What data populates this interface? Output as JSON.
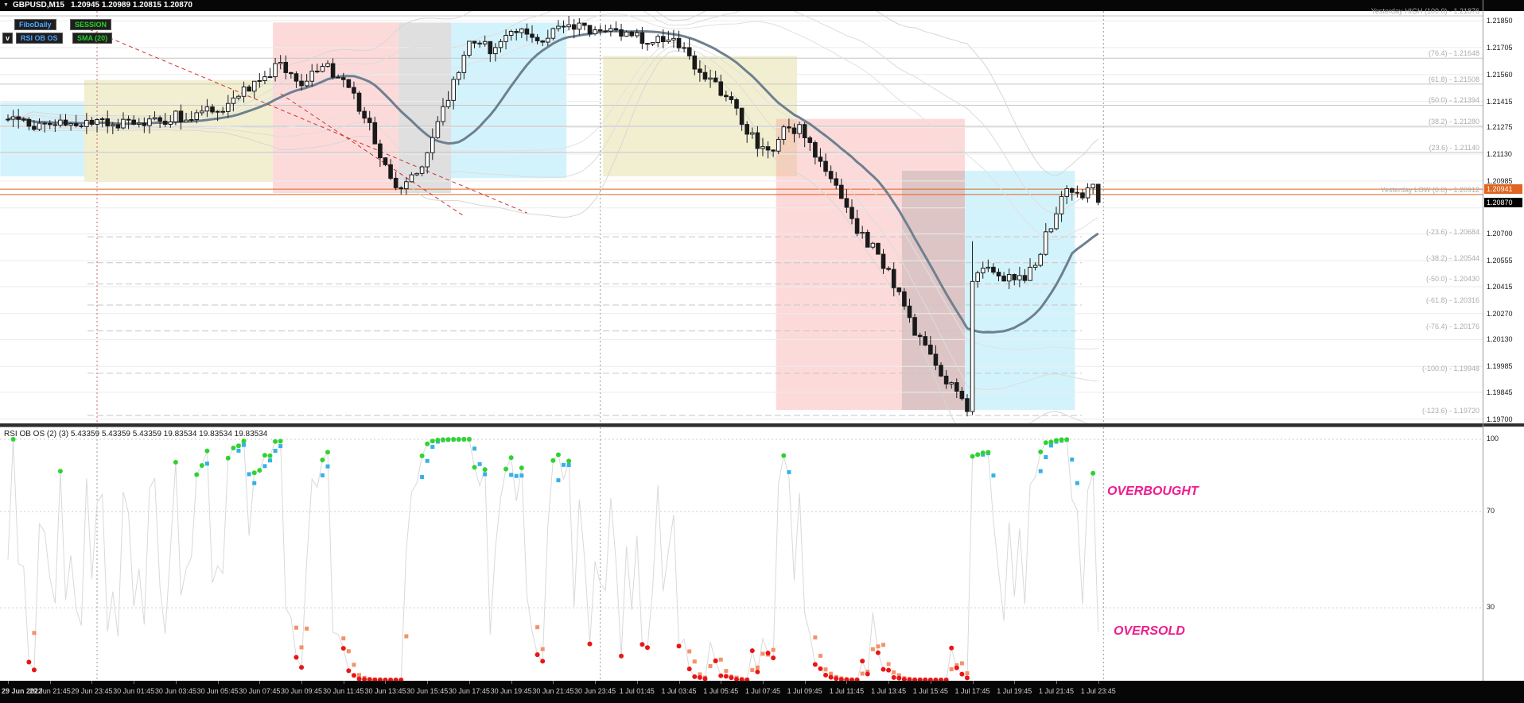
{
  "window": {
    "symbol": "GBPUSD,M15",
    "ohlc": "1.20945 1.20989 1.20815 1.20870",
    "dropdown_icon": "▼"
  },
  "buttons": {
    "fibo_daily": "FiboDaily",
    "session": "SESSION",
    "collapse": "v",
    "rsi_ob_os": "RSI OB OS",
    "sma20": "SMA (20)"
  },
  "indicator_label": "RSI OB OS (2) (3) 5.43359 5.43359 5.43359 19.83534 19.83534 19.83534",
  "overbought_label": "OVERBOUGHT",
  "oversold_label": "OVERSOLD",
  "price_axis": {
    "labels": [
      "1.21850",
      "1.21705",
      "1.21560",
      "1.21415",
      "1.21275",
      "1.21130",
      "1.20985",
      "1.20700",
      "1.20555",
      "1.20415",
      "1.20270",
      "1.20130",
      "1.19985",
      "1.19845",
      "1.19700"
    ],
    "grid": [
      1.2185,
      1.21705,
      1.2156,
      1.21415,
      1.21275,
      1.2113,
      1.20985,
      1.2084,
      1.207,
      1.20555,
      1.20415,
      1.2027,
      1.2013,
      1.19985,
      1.19845,
      1.197
    ],
    "orange_tag": "1.20941",
    "current_tag": "1.20870"
  },
  "rsi_axis": [
    "100",
    "70",
    "30"
  ],
  "time_axis": [
    "29 Jun 2022",
    "29 Jun 21:45",
    "29 Jun 23:45",
    "30 Jun 01:45",
    "30 Jun 03:45",
    "30 Jun 05:45",
    "30 Jun 07:45",
    "30 Jun 09:45",
    "30 Jun 11:45",
    "30 Jun 13:45",
    "30 Jun 15:45",
    "30 Jun 17:45",
    "30 Jun 19:45",
    "30 Jun 21:45",
    "30 Jun 23:45",
    "1 Jul 01:45",
    "1 Jul 03:45",
    "1 Jul 05:45",
    "1 Jul 07:45",
    "1 Jul 09:45",
    "1 Jul 11:45",
    "1 Jul 13:45",
    "1 Jul 15:45",
    "1 Jul 17:45",
    "1 Jul 19:45",
    "1 Jul 21:45",
    "1 Jul 23:45"
  ],
  "fibo_levels": [
    {
      "label": "Yesterday HIGH (100.0) - 1.21876",
      "price": 1.21876,
      "dash": false,
      "orange": false
    },
    {
      "label": "(76.4) - 1.21648",
      "price": 1.21648,
      "dash": false,
      "orange": false
    },
    {
      "label": "(61.8) - 1.21508",
      "price": 1.21508,
      "dash": false,
      "orange": false
    },
    {
      "label": "(50.0) - 1.21394",
      "price": 1.21394,
      "dash": false,
      "orange": false
    },
    {
      "label": "(38.2) - 1.21280",
      "price": 1.2128,
      "dash": false,
      "orange": false
    },
    {
      "label": "(23.6) - 1.21140",
      "price": 1.2114,
      "dash": false,
      "orange": false
    },
    {
      "label": "Yesterday LOW (0.0) - 1.20912",
      "price": 1.20912,
      "dash": false,
      "orange": true
    },
    {
      "label": "(-23.6) - 1.20684",
      "price": 1.20684,
      "dash": true,
      "orange": false
    },
    {
      "label": "(-38.2) - 1.20544",
      "price": 1.20544,
      "dash": true,
      "orange": false
    },
    {
      "label": "(-50.0) - 1.20430",
      "price": 1.2043,
      "dash": true,
      "orange": false
    },
    {
      "label": "(-61.8) - 1.20316",
      "price": 1.20316,
      "dash": true,
      "orange": false
    },
    {
      "label": "(-76.4) - 1.20176",
      "price": 1.20176,
      "dash": true,
      "orange": false
    },
    {
      "label": "(-100.0) - 1.19948",
      "price": 1.19948,
      "dash": true,
      "orange": false
    },
    {
      "label": "(-123.6) - 1.19720",
      "price": 1.1972,
      "dash": true,
      "orange": false
    }
  ],
  "colors": {
    "chart_bg": "#ffffff",
    "frame_bg": "#060606",
    "orange_line": "#e0651f",
    "sma_line": "#6e8090",
    "candle": "#1a1a1a",
    "grid": "#ececec",
    "fibo_label": "#adadad",
    "overbought_dot": "#2fd32f",
    "overbought_square": "#35b1e8",
    "oversold_dot": "#ea1515",
    "oversold_square": "#f2926c",
    "ob_os_text": "#ef1c8f",
    "button_blue": "#4da6ff",
    "button_green": "#27d127",
    "trend_line": "#cf3030"
  },
  "chart_data": {
    "type": "candlestick",
    "symbol": "GBPUSD",
    "timeframe": "M15",
    "open": 1.20945,
    "high": 1.20989,
    "low": 1.20815,
    "close": 1.2087,
    "bars": 209,
    "last_close": 1.2087,
    "orange_line_price": 1.20941,
    "yesterday_high": 1.21876,
    "yesterday_low": 1.20912,
    "price_range_top": 1.21902,
    "price_range_bottom": 1.19677,
    "close_anchors": [
      [
        0,
        1.2131
      ],
      [
        8,
        1.2128
      ],
      [
        16,
        1.2132
      ],
      [
        24,
        1.2129
      ],
      [
        32,
        1.2133
      ],
      [
        40,
        1.2137
      ],
      [
        46,
        1.2148
      ],
      [
        52,
        1.2161
      ],
      [
        55,
        1.2152
      ],
      [
        61,
        1.2159
      ],
      [
        65,
        1.2149
      ],
      [
        69,
        1.2127
      ],
      [
        74,
        1.2092
      ],
      [
        78,
        1.2101
      ],
      [
        82,
        1.213
      ],
      [
        85,
        1.2152
      ],
      [
        88,
        1.2173
      ],
      [
        93,
        1.2169
      ],
      [
        97,
        1.218
      ],
      [
        102,
        1.2176
      ],
      [
        107,
        1.2184
      ],
      [
        111,
        1.2178
      ],
      [
        116,
        1.2181
      ],
      [
        121,
        1.2174
      ],
      [
        126,
        1.2177
      ],
      [
        130,
        1.2165
      ],
      [
        134,
        1.2152
      ],
      [
        138,
        1.2141
      ],
      [
        142,
        1.2122
      ],
      [
        145,
        1.2113
      ],
      [
        148,
        1.2126
      ],
      [
        151,
        1.2127
      ],
      [
        154,
        1.2111
      ],
      [
        158,
        1.2093
      ],
      [
        162,
        1.2073
      ],
      [
        166,
        1.2059
      ],
      [
        170,
        1.2038
      ],
      [
        174,
        1.2012
      ],
      [
        177,
        1.1998
      ],
      [
        180,
        1.1989
      ],
      [
        183,
        1.1974
      ],
      [
        184,
        1.2042
      ],
      [
        186,
        1.2052
      ],
      [
        190,
        1.2047
      ],
      [
        194,
        1.2046
      ],
      [
        197,
        1.2061
      ],
      [
        200,
        1.2083
      ],
      [
        202,
        1.2094
      ],
      [
        205,
        1.2091
      ],
      [
        207,
        1.2096
      ],
      [
        208,
        1.2087
      ]
    ],
    "sessions": [
      {
        "name": "asia-1",
        "color": "rgba(130,222,245,0.35)",
        "b0": -1,
        "b1": 15,
        "p0": 1.2141,
        "p1": 1.2101
      },
      {
        "name": "london-1",
        "color": "rgba(218,210,120,0.35)",
        "b0": 15,
        "b1": 51,
        "p0": 1.2153,
        "p1": 1.2098
      },
      {
        "name": "newyork-1",
        "color": "rgba(250,150,150,0.35)",
        "b0": 51,
        "b1": 75,
        "p0": 1.2184,
        "p1": 1.2092
      },
      {
        "name": "late-1",
        "color": "rgba(150,150,150,0.30)",
        "b0": 75,
        "b1": 85,
        "p0": 1.2184,
        "p1": 1.2092
      },
      {
        "name": "asia-2",
        "color": "rgba(130,222,245,0.35)",
        "b0": 85,
        "b1": 107,
        "p0": 1.2184,
        "p1": 1.21
      },
      {
        "name": "london-2",
        "color": "rgba(218,210,120,0.35)",
        "b0": 114,
        "b1": 151,
        "p0": 1.2166,
        "p1": 1.2101
      },
      {
        "name": "newyork-2",
        "color": "rgba(250,150,150,0.35)",
        "b0": 147,
        "b1": 183,
        "p0": 1.2132,
        "p1": 1.1975
      },
      {
        "name": "late-2",
        "color": "rgba(150,150,150,0.30)",
        "b0": 171,
        "b1": 183,
        "p0": 1.2104,
        "p1": 1.1975
      },
      {
        "name": "asia-3",
        "color": "rgba(130,222,245,0.35)",
        "b0": 183,
        "b1": 204,
        "p0": 1.2104,
        "p1": 1.1975
      }
    ],
    "trend_lines": [
      {
        "b0": 13,
        "p0": 1.21833,
        "b1": 99,
        "p1": 1.20813
      },
      {
        "b0": 52,
        "p0": 1.21456,
        "b1": 87,
        "p1": 1.20796
      }
    ],
    "day_separator_bars": [
      17,
      113,
      209
    ],
    "rsi": {
      "name": "RSI OB OS",
      "period": 2,
      "smoothing": 3,
      "levels": [
        100,
        70,
        30
      ],
      "current_fast": 5.43359,
      "current_slow": 19.83534
    }
  }
}
